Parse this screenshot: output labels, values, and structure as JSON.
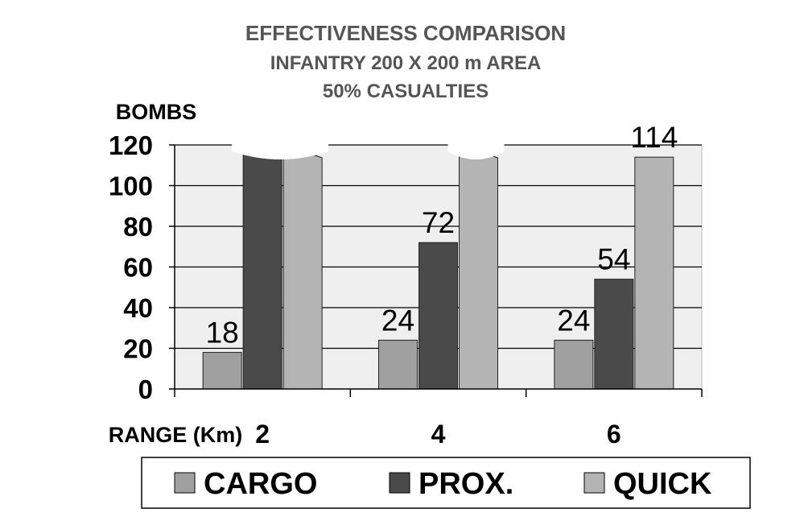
{
  "chart_data": {
    "type": "bar",
    "title": [
      "EFFECTIVENESS COMPARISON",
      "INFANTRY 200 X 200 m AREA",
      "50% CASUALTIES"
    ],
    "ylabel": "BOMBS",
    "xlabel": "RANGE (Km)",
    "categories": [
      "2",
      "4",
      "6"
    ],
    "yticks": [
      "0",
      "20",
      "40",
      "60",
      "80",
      "100",
      "120"
    ],
    "ylim": [
      0,
      120
    ],
    "grid": true,
    "legend_position": "bottom",
    "series": [
      {
        "name": "CARGO",
        "color": "#a0a0a0",
        "values": [
          18,
          24,
          24
        ],
        "labels": [
          "18",
          "24",
          "24"
        ]
      },
      {
        "name": "PROX.",
        "color": "#4a4a4a",
        "values": [
          120,
          72,
          54
        ],
        "labels": [
          "",
          "72",
          "54"
        ]
      },
      {
        "name": "QUICK",
        "color": "#b4b4b4",
        "values": [
          120,
          120,
          114
        ],
        "labels": [
          "",
          "",
          "114"
        ]
      }
    ],
    "annotations": [
      "bars exceeding the axis top are shown with a broken (wavy) top"
    ]
  }
}
